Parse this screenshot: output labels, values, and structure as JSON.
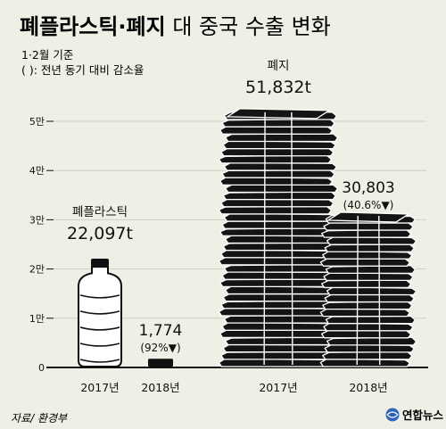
{
  "chart_data": {
    "type": "bar",
    "title": "폐플라스틱·폐지",
    "subtitle": " 대 중국 수출 변화",
    "notes": [
      "1·2월 기준",
      "(  ): 전년 동기 대비 감소율"
    ],
    "yunit": "만",
    "ylim": [
      0,
      50000
    ],
    "yticks": [
      {
        "value": 0,
        "label": "0"
      },
      {
        "value": 10000,
        "label": "1만"
      },
      {
        "value": 20000,
        "label": "2만"
      },
      {
        "value": 30000,
        "label": "3만"
      },
      {
        "value": 40000,
        "label": "4만"
      },
      {
        "value": 50000,
        "label": "5만"
      }
    ],
    "grid": true,
    "groups": [
      {
        "name": "폐플라스틱",
        "icon": "plastic-bottle",
        "bars": [
          {
            "year": "2017년",
            "value": 22097,
            "label": "22,097t",
            "change": ""
          },
          {
            "year": "2018년",
            "value": 1774,
            "label": "1,774",
            "change": "(92%▼)"
          }
        ]
      },
      {
        "name": "폐지",
        "icon": "paper-stack",
        "bars": [
          {
            "year": "2017년",
            "value": 51832,
            "label": "51,832t",
            "change": ""
          },
          {
            "year": "2018년",
            "value": 30803,
            "label": "30,803",
            "change": "(40.6%▼)"
          }
        ]
      }
    ],
    "colors": {
      "background": "#efefe6",
      "ink": "#111111",
      "grid": "#cfcfc6",
      "bottle": "#ffffff",
      "paper_light": "#ffffff",
      "paper_dark": "#141414"
    }
  },
  "footer": {
    "source": "자료/ 환경부",
    "brand": "연합뉴스"
  }
}
